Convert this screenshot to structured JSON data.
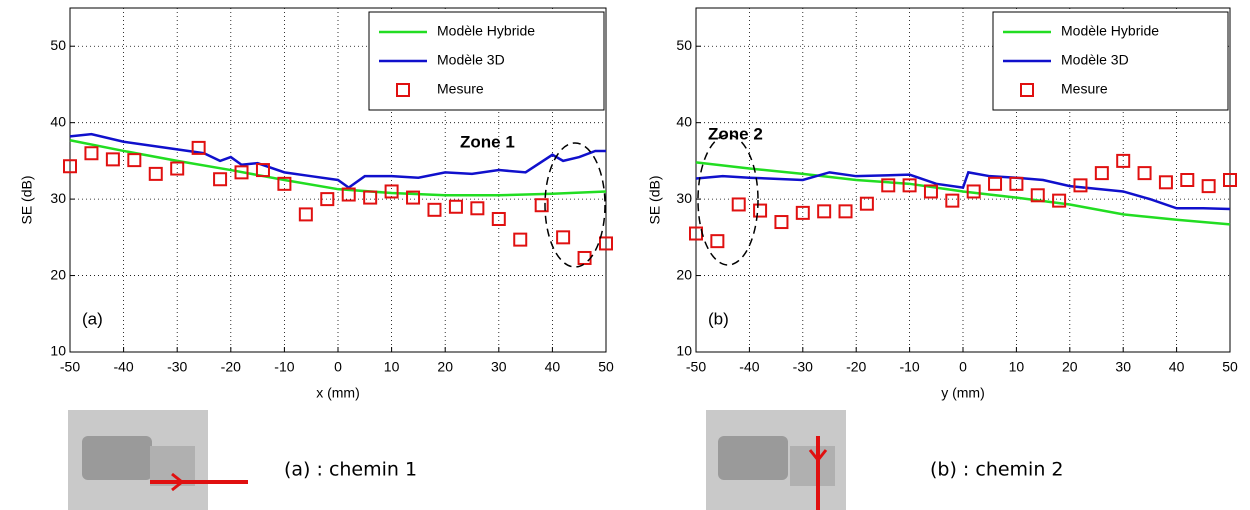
{
  "chart_data": [
    {
      "type": "line",
      "xlabel": "x (mm)",
      "ylabel": "SE (dB)",
      "panel_label": "(a)",
      "annotation": "Zone 1",
      "xlim": [
        -50,
        50
      ],
      "ylim": [
        10,
        55
      ],
      "xticks": [
        -50,
        -40,
        -30,
        -20,
        -10,
        0,
        10,
        20,
        30,
        40,
        50
      ],
      "yticks": [
        10,
        20,
        30,
        40,
        50
      ],
      "grid": true,
      "legend": "top-right",
      "series": [
        {
          "name": "Modèle Hybride",
          "color": "#22dd22",
          "marker": "line",
          "x": [
            -50,
            -40,
            -30,
            -20,
            -10,
            0,
            10,
            20,
            30,
            40,
            50
          ],
          "values": [
            37.7,
            36.3,
            35,
            33.8,
            32.5,
            31.3,
            30.8,
            30.5,
            30.5,
            30.7,
            31
          ]
        },
        {
          "name": "Modèle 3D",
          "color": "#1010cc",
          "marker": "line",
          "x": [
            -50,
            -46,
            -40,
            -30,
            -25,
            -22,
            -20,
            -18,
            -15,
            -10,
            -5,
            0,
            2,
            5,
            10,
            15,
            20,
            25,
            30,
            35,
            40,
            42,
            45,
            48,
            50
          ],
          "values": [
            38.2,
            38.5,
            37.5,
            36.5,
            36,
            35,
            35.5,
            34.5,
            34.7,
            33.5,
            33,
            32.5,
            31.5,
            33,
            33,
            32.8,
            33.5,
            33.3,
            33.8,
            33.5,
            35.8,
            35,
            35.5,
            36.3,
            36.3
          ]
        },
        {
          "name": "Mesure",
          "color": "#e01010",
          "marker": "square",
          "x": [
            -50,
            -46,
            -42,
            -38,
            -34,
            -30,
            -26,
            -22,
            -18,
            -14,
            -10,
            -6,
            -2,
            2,
            6,
            10,
            14,
            18,
            22,
            26,
            30,
            34,
            38,
            42,
            46,
            50
          ],
          "values": [
            34.3,
            36,
            35.2,
            35.1,
            33.3,
            34,
            36.7,
            32.6,
            33.5,
            33.8,
            32,
            28,
            30,
            30.6,
            30.2,
            31,
            30.2,
            28.6,
            29,
            28.8,
            27.4,
            24.7,
            29.2,
            25,
            22.3,
            24.2
          ]
        }
      ]
    },
    {
      "type": "line",
      "xlabel": "y (mm)",
      "ylabel": "SE (dB)",
      "panel_label": "(b)",
      "annotation": "Zone 2",
      "xlim": [
        -50,
        50
      ],
      "ylim": [
        10,
        55
      ],
      "xticks": [
        -50,
        -40,
        -30,
        -20,
        -10,
        0,
        10,
        20,
        30,
        40,
        50
      ],
      "yticks": [
        10,
        20,
        30,
        40,
        50
      ],
      "grid": true,
      "legend": "top-right",
      "series": [
        {
          "name": "Modèle Hybride",
          "color": "#22dd22",
          "marker": "line",
          "x": [
            -50,
            -40,
            -30,
            -20,
            -10,
            0,
            10,
            20,
            30,
            40,
            50
          ],
          "values": [
            34.8,
            34,
            33.3,
            32.5,
            32,
            31,
            30.2,
            29.3,
            28,
            27.3,
            26.7
          ]
        },
        {
          "name": "Modèle 3D",
          "color": "#1010cc",
          "marker": "line",
          "x": [
            -50,
            -45,
            -40,
            -30,
            -25,
            -20,
            -10,
            -5,
            0,
            1,
            5,
            10,
            15,
            20,
            30,
            35,
            40,
            45,
            50
          ],
          "values": [
            32.7,
            33,
            32.8,
            32.5,
            33.5,
            33,
            33.2,
            32,
            31.5,
            33.5,
            33,
            32.8,
            32.5,
            31.7,
            31,
            30,
            28.8,
            28.8,
            28.7
          ]
        },
        {
          "name": "Mesure",
          "color": "#e01010",
          "marker": "square",
          "x": [
            -50,
            -46,
            -42,
            -38,
            -34,
            -30,
            -26,
            -22,
            -18,
            -14,
            -10,
            -6,
            -2,
            2,
            6,
            10,
            14,
            18,
            22,
            26,
            30,
            34,
            38,
            42,
            46,
            50
          ],
          "values": [
            25.5,
            24.5,
            29.3,
            28.5,
            27,
            28.2,
            28.4,
            28.4,
            29.4,
            31.8,
            31.8,
            31,
            29.8,
            31,
            32,
            32,
            30.5,
            29.8,
            31.8,
            33.4,
            35,
            33.4,
            32.2,
            32.5,
            31.7,
            32.5
          ]
        }
      ]
    }
  ],
  "captions": [
    "(a) : chemin 1",
    "(b) : chemin 2"
  ]
}
